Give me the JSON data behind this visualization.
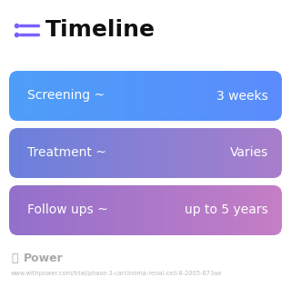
{
  "title": "Timeline",
  "title_icon_color": "#7B61FF",
  "title_fontsize": 18,
  "title_fontweight": "bold",
  "background_color": "#ffffff",
  "rows": [
    {
      "label": "Screening ~",
      "value": "3 weeks",
      "color_left": "#4d9ef8",
      "color_right": "#5b8cfc"
    },
    {
      "label": "Treatment ~",
      "value": "Varies",
      "color_left": "#6a80dc",
      "color_right": "#a87ecb"
    },
    {
      "label": "Follow ups ~",
      "value": "up to 5 years",
      "color_left": "#9270cc",
      "color_right": "#c47ec5"
    }
  ],
  "footer_text": "Power",
  "footer_url": "www.withpower.com/trial/phase-3-carcinoma-renal-cell-8-2005-673ae",
  "row_text_color": "#ffffff",
  "row_label_fontsize": 10,
  "row_value_fontsize": 10
}
